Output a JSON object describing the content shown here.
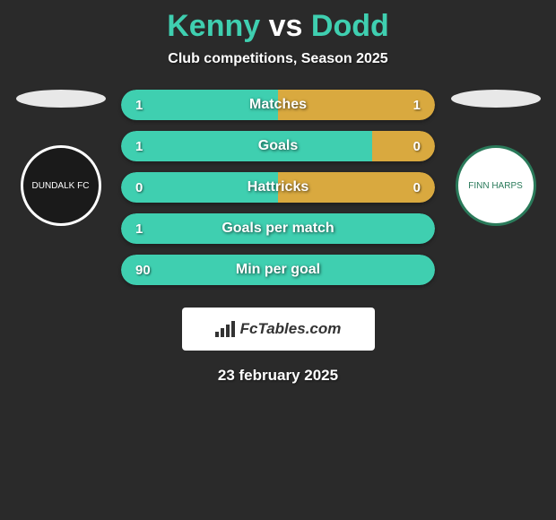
{
  "title": {
    "player1": "Kenny",
    "vs": "vs",
    "player2": "Dodd",
    "player1_color": "#3fcfb0",
    "vs_color": "#ffffff",
    "player2_color": "#3fcfb0"
  },
  "subtitle": "Club competitions, Season 2025",
  "colors": {
    "background": "#2a2a2a",
    "bar_left": "#3fcfb0",
    "bar_right": "#d9a93f",
    "platform": "#e8e8e8"
  },
  "crests": {
    "left": {
      "bg": "#1a1a1a",
      "text": "DUNDALK FC",
      "text_color": "#ffffff"
    },
    "right": {
      "bg": "#ffffff",
      "text": "FINN HARPS",
      "text_color": "#2a7a5a"
    }
  },
  "stats": [
    {
      "label": "Matches",
      "left_val": "1",
      "right_val": "1",
      "left_pct": 50,
      "right_pct": 50
    },
    {
      "label": "Goals",
      "left_val": "1",
      "right_val": "0",
      "left_pct": 80,
      "right_pct": 20
    },
    {
      "label": "Hattricks",
      "left_val": "0",
      "right_val": "0",
      "left_pct": 50,
      "right_pct": 50
    },
    {
      "label": "Goals per match",
      "left_val": "1",
      "right_val": "",
      "left_pct": 100,
      "right_pct": 0
    },
    {
      "label": "Min per goal",
      "left_val": "90",
      "right_val": "",
      "left_pct": 100,
      "right_pct": 0
    }
  ],
  "branding": "FcTables.com",
  "date": "23 february 2025"
}
